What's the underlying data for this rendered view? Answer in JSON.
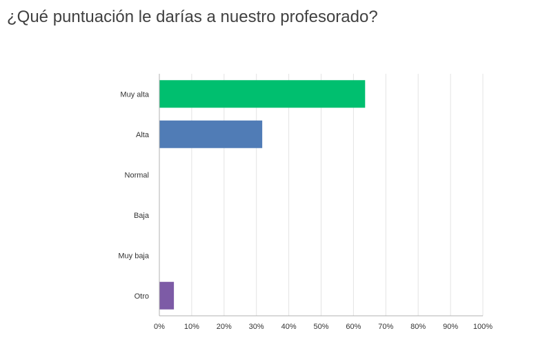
{
  "question": {
    "title": "¿Qué puntuación le darías a nuestro profesorado?"
  },
  "chart_data": {
    "type": "bar",
    "orientation": "horizontal",
    "categories": [
      "Muy alta",
      "Alta",
      "Normal",
      "Baja",
      "Muy baja",
      "Otro"
    ],
    "values": [
      63.6,
      31.8,
      0,
      0,
      0,
      4.5
    ],
    "colors": [
      "#00bf6f",
      "#507cb6",
      "#507cb6",
      "#507cb6",
      "#507cb6",
      "#7d5ba6"
    ],
    "xlim": [
      0,
      100
    ],
    "x_ticks": [
      "0%",
      "10%",
      "20%",
      "30%",
      "40%",
      "50%",
      "60%",
      "70%",
      "80%",
      "90%",
      "100%"
    ],
    "grid": true
  }
}
